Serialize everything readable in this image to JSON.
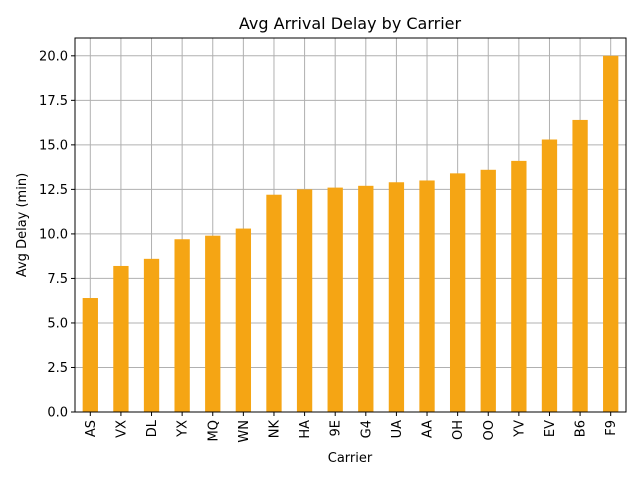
{
  "chart_data": {
    "type": "bar",
    "title": "Avg Arrival Delay by Carrier",
    "xlabel": "Carrier",
    "ylabel": "Avg Delay (min)",
    "categories": [
      "AS",
      "VX",
      "DL",
      "YX",
      "MQ",
      "WN",
      "NK",
      "HA",
      "9E",
      "G4",
      "UA",
      "AA",
      "OH",
      "OO",
      "YV",
      "EV",
      "B6",
      "F9"
    ],
    "values": [
      6.4,
      8.2,
      8.6,
      9.7,
      9.9,
      10.3,
      12.2,
      12.5,
      12.6,
      12.7,
      12.9,
      13.0,
      13.4,
      13.6,
      14.1,
      15.3,
      16.4,
      20.0
    ],
    "ylim": [
      0,
      21.0
    ],
    "yticks": [
      "0.0",
      "2.5",
      "5.0",
      "7.5",
      "10.0",
      "12.5",
      "15.0",
      "17.5",
      "20.0"
    ],
    "grid": true,
    "bar_color": "#f5a514",
    "grid_color": "#b0b0b0"
  }
}
